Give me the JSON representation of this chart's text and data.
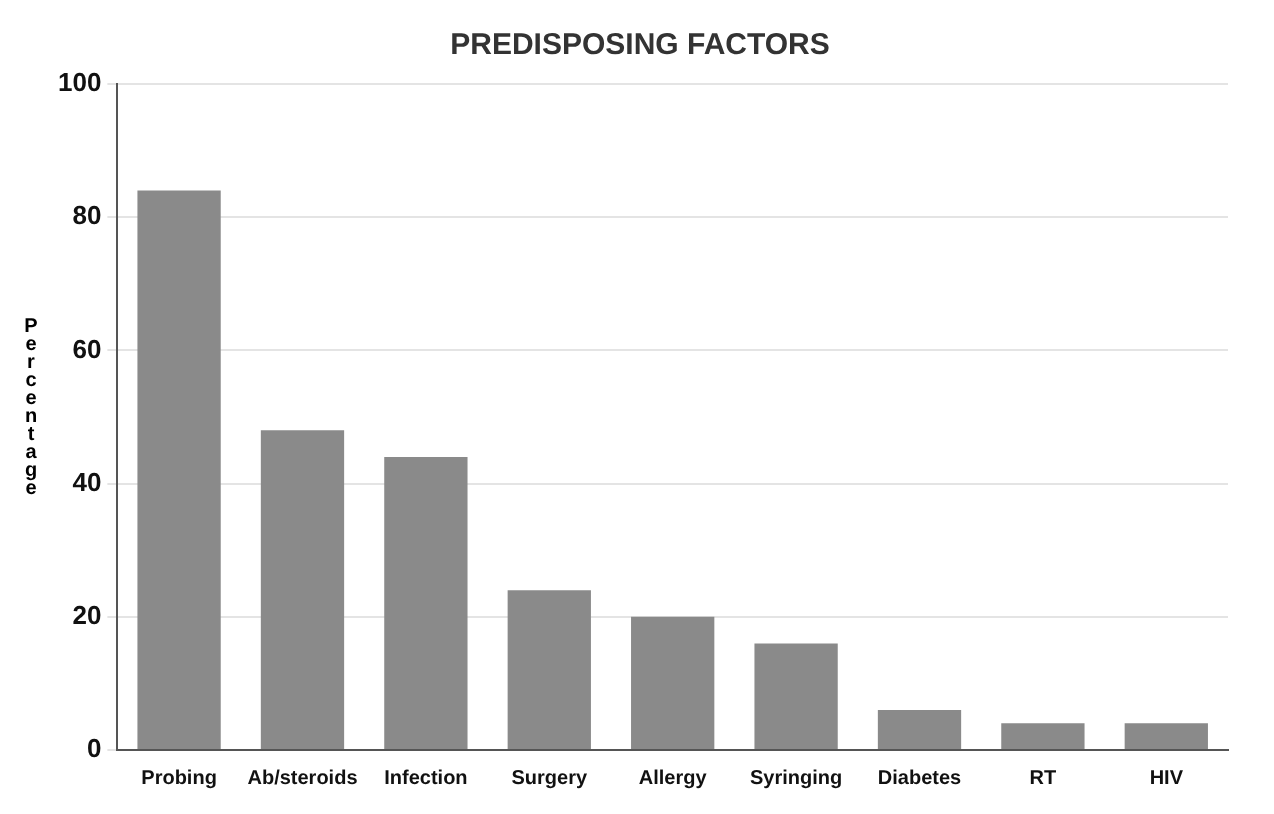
{
  "chart_data": {
    "type": "bar",
    "title": "PREDISPOSING FACTORS",
    "ylabel": "Percentage",
    "categories": [
      "Probing",
      "Ab/steroids",
      "Infection",
      "Surgery",
      "Allergy",
      "Syringing",
      "Diabetes",
      "RT",
      "HIV"
    ],
    "values": [
      84,
      48,
      44,
      24,
      20,
      16,
      6,
      4,
      4
    ],
    "color": "#8a8a8a",
    "ylim": [
      0,
      100
    ],
    "yticks": [
      0,
      20,
      40,
      60,
      80,
      100
    ],
    "grid": "y"
  }
}
